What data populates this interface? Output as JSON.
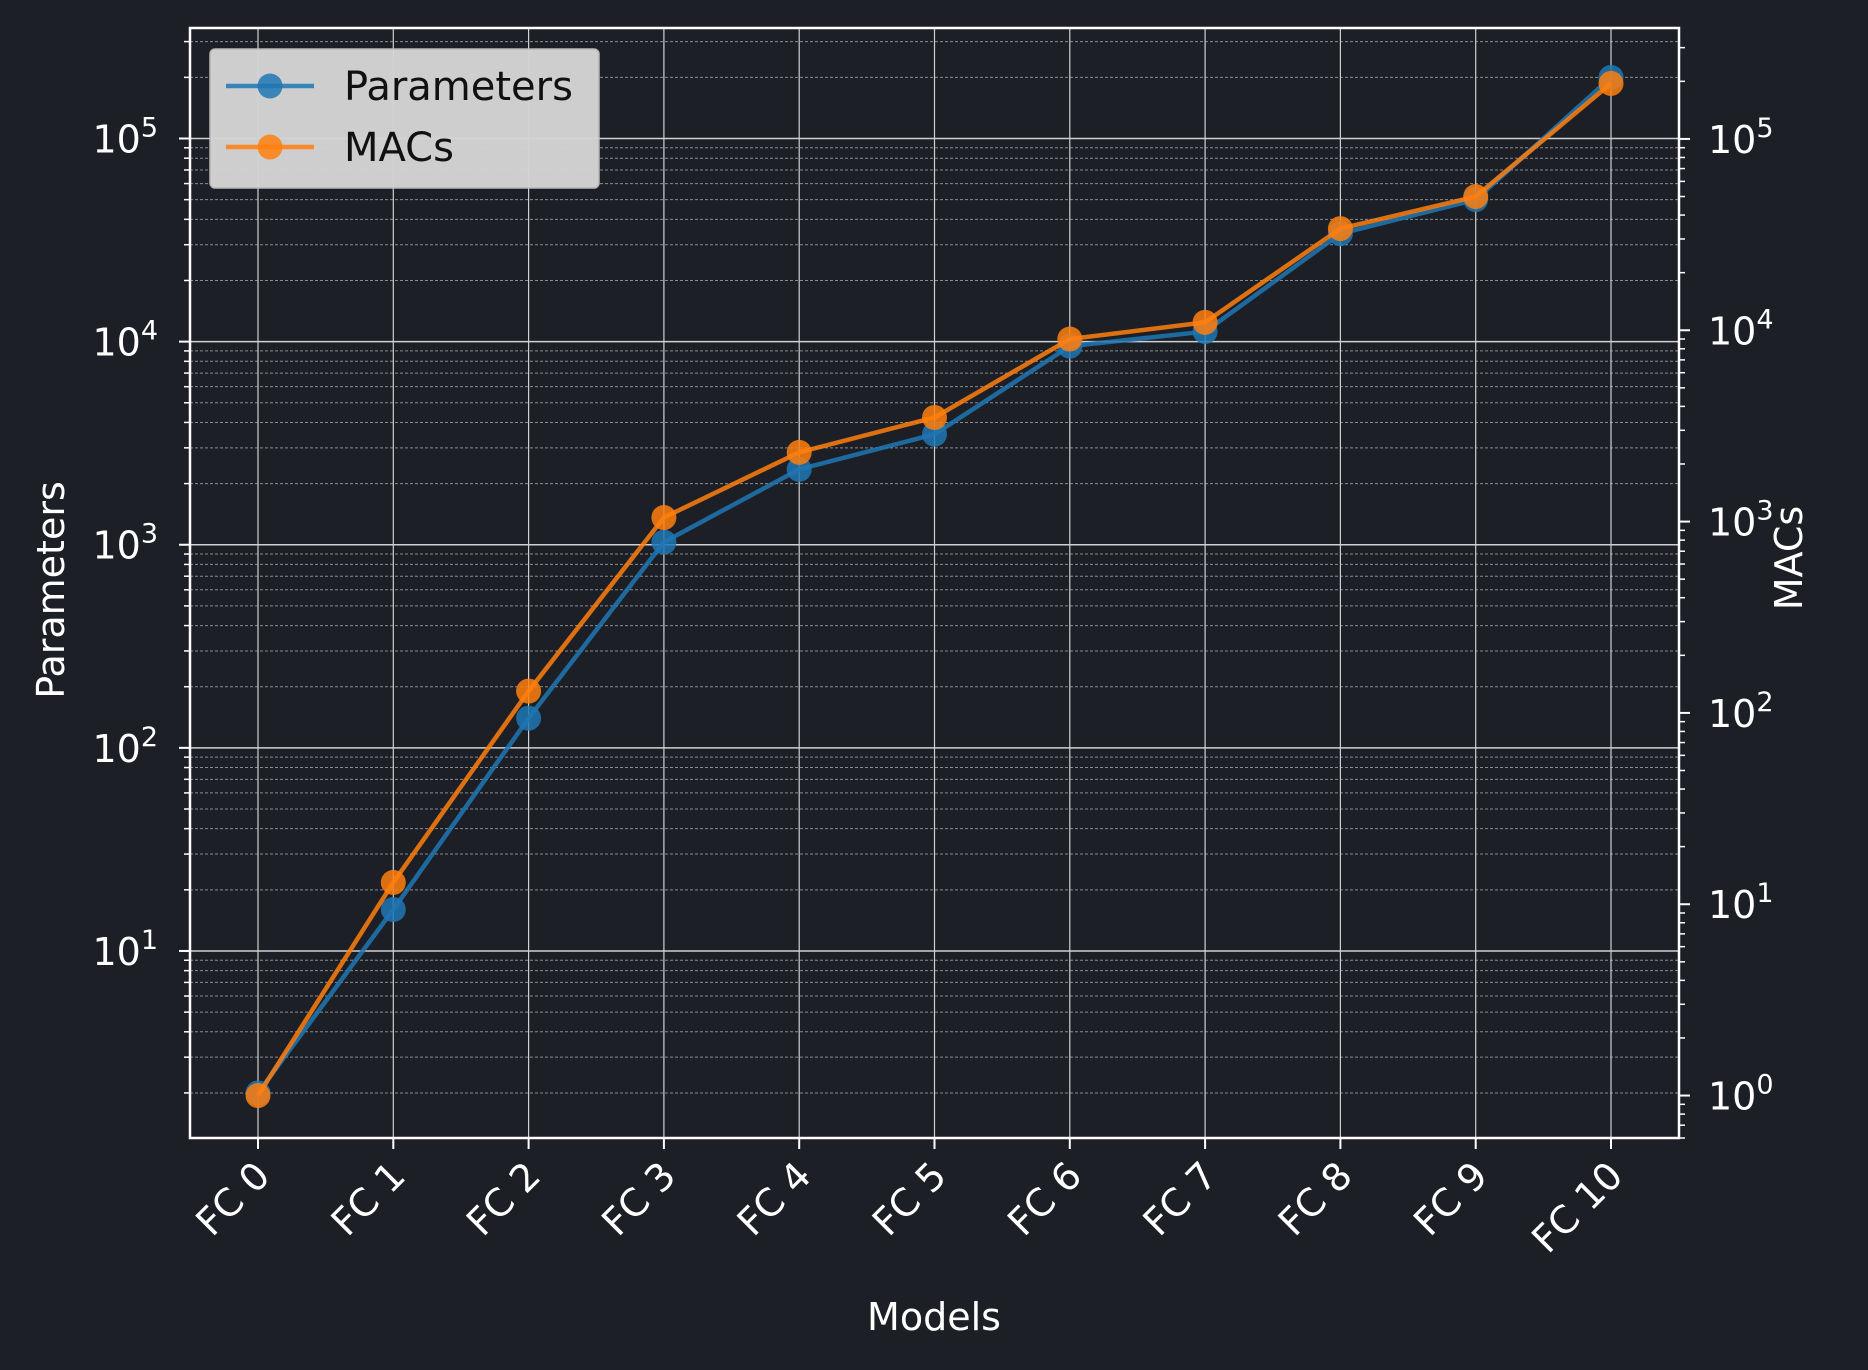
{
  "chart_data": {
    "type": "line",
    "categories": [
      "FC 0",
      "FC 1",
      "FC 2",
      "FC 3",
      "FC 4",
      "FC 5",
      "FC 6",
      "FC 7",
      "FC 8",
      "FC 9",
      "FC 10"
    ],
    "xlabel": "Models",
    "ylabel_left": "Parameters",
    "ylabel_right": "MACs",
    "yscale": "log",
    "left_axis": {
      "ticks": [
        10,
        100,
        1000,
        10000,
        100000
      ],
      "tick_labels": [
        "10",
        "10",
        "10",
        "10",
        "10"
      ],
      "tick_exponents": [
        "1",
        "2",
        "3",
        "4",
        "5"
      ],
      "ylim": [
        1.2,
        350000
      ]
    },
    "right_axis": {
      "ticks": [
        1,
        10,
        100,
        1000,
        10000,
        100000
      ],
      "tick_labels": [
        "10",
        "10",
        "10",
        "10",
        "10",
        "10"
      ],
      "tick_exponents": [
        "0",
        "1",
        "2",
        "3",
        "4",
        "5"
      ],
      "ylim": [
        0.6,
        380000
      ]
    },
    "grid": true,
    "legend_position": "top-left",
    "series": [
      {
        "name": "Parameters",
        "axis": "left",
        "color": "#1f77b4",
        "values": [
          2,
          16,
          140,
          1030,
          2350,
          3500,
          9500,
          11200,
          34000,
          50000,
          200000
        ]
      },
      {
        "name": "MACs",
        "axis": "right",
        "color": "#ff7f0e",
        "values": [
          1,
          13,
          130,
          1050,
          2300,
          3500,
          9000,
          11000,
          34000,
          50000,
          195000
        ]
      }
    ]
  },
  "colors": {
    "background": "#1d1f27",
    "axes": "#ffffff",
    "legend_bg": "#d4d4d4"
  }
}
